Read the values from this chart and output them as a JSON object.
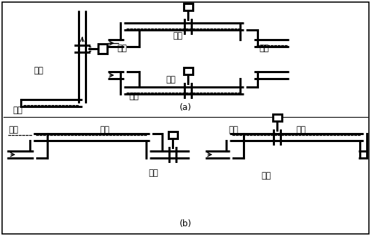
{
  "bg_color": "#ffffff",
  "pipe_color": "#000000",
  "label_a": "(a)",
  "label_b": "(b)",
  "text_zhengque": "正确",
  "text_cuowu": "错误",
  "text_yeti": "液体",
  "text_qipao": "气泡",
  "lw": 2.2,
  "lw_thin": 1.0
}
